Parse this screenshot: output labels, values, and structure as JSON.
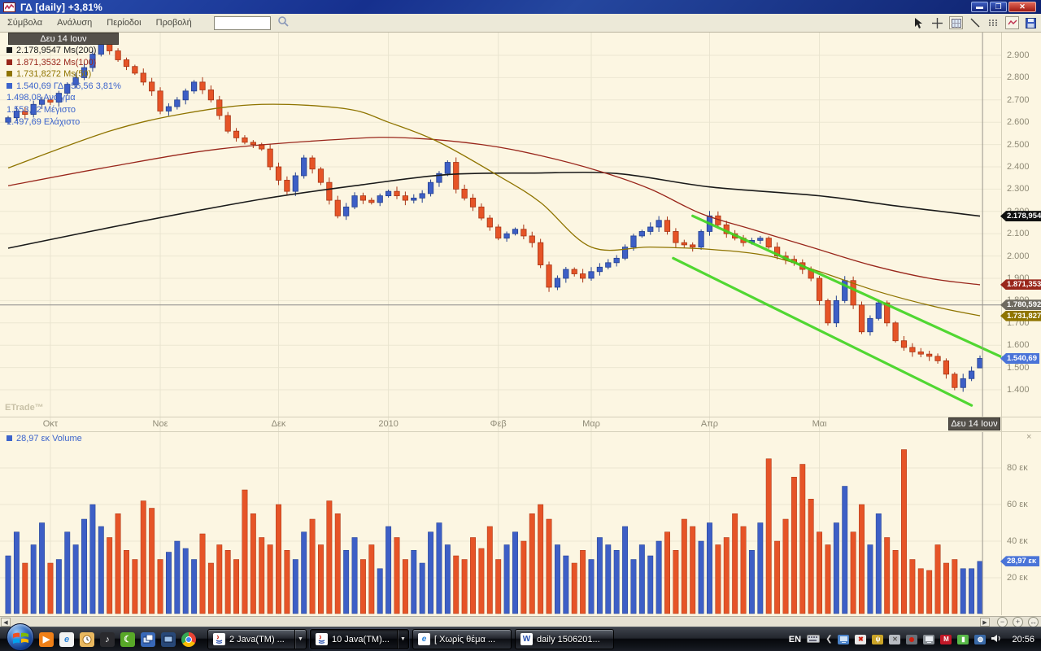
{
  "window": {
    "icon": "line-chart-app-icon",
    "title": "ΓΔ [daily] +3,81%"
  },
  "menu": {
    "items": [
      "Σύμβολα",
      "Ανάλυση",
      "Περίοδοι",
      "Προβολή"
    ],
    "search_value": ""
  },
  "toolbar": {
    "icons": [
      "pointer-tool",
      "crosshair-tool",
      "grid-tool",
      "trendline-tool",
      "dots-grid-tool",
      "chart-style-tool",
      "save-tool"
    ]
  },
  "ui": {
    "close_glyph": "×"
  },
  "chart": {
    "cursor_date": "Δευ 14 Ιουν",
    "watermark": "ETrade™",
    "legend": [
      {
        "swatch": "#1a1a1a",
        "color": "#1a1a1a",
        "text": "2.178,9547 Ms(200)"
      },
      {
        "swatch": "#99261b",
        "color": "#99261b",
        "text": "1.871,3532 Ms(100)"
      },
      {
        "swatch": "#8f7400",
        "color": "#8f7400",
        "text": "1.731,8272 Ms(50)"
      },
      {
        "swatch": "#3c64cc",
        "color": "#3c64cc",
        "text": "1.540,69 ΓΔ +56,56 3,81%"
      },
      {
        "swatch": null,
        "color": "#3c64cc",
        "text": "1.498,08 Ανοιγμα"
      },
      {
        "swatch": null,
        "color": "#3c64cc",
        "text": "1.553,72 Μέγιστο"
      },
      {
        "swatch": null,
        "color": "#3c64cc",
        "text": "1.497,69 Ελάχιστο"
      }
    ],
    "price_tags": [
      {
        "text": "2.178,954",
        "value": 2178.95,
        "bg": "#111111"
      },
      {
        "text": "1.871,353",
        "value": 1871.35,
        "bg": "#99261b"
      },
      {
        "text": "1.780,592",
        "value": 1780.59,
        "bg": "#6e6a60"
      },
      {
        "text": "1.731,827",
        "value": 1731.83,
        "bg": "#8f7400"
      },
      {
        "text": "1.540,69",
        "value": 1540.69,
        "bg": "#4a74d8"
      }
    ]
  },
  "chart_data": {
    "type": "candlestick",
    "symbol": "ΓΔ",
    "timeframe": "daily",
    "change_pct_label": "+3,81%",
    "ylim": [
      1350,
      2950
    ],
    "yticks": [
      {
        "v": 2900,
        "t": "2.900"
      },
      {
        "v": 2800,
        "t": "2.800"
      },
      {
        "v": 2700,
        "t": "2.700"
      },
      {
        "v": 2600,
        "t": "2.600"
      },
      {
        "v": 2500,
        "t": "2.500"
      },
      {
        "v": 2400,
        "t": "2.400"
      },
      {
        "v": 2300,
        "t": "2.300"
      },
      {
        "v": 2200,
        "t": "2.200"
      },
      {
        "v": 2100,
        "t": "2.100"
      },
      {
        "v": 2000,
        "t": "2.000"
      },
      {
        "v": 1900,
        "t": "1.900"
      },
      {
        "v": 1800,
        "t": "1.800"
      },
      {
        "v": 1700,
        "t": "1.700"
      },
      {
        "v": 1600,
        "t": "1.600"
      },
      {
        "v": 1500,
        "t": "1.500"
      },
      {
        "v": 1400,
        "t": "1.400"
      }
    ],
    "x_month_ticks": [
      {
        "t": "Οκτ",
        "i": 5
      },
      {
        "t": "Νοε",
        "i": 18
      },
      {
        "t": "Δεκ",
        "i": 32
      },
      {
        "t": "2010",
        "i": 45
      },
      {
        "t": "Φεβ",
        "i": 58
      },
      {
        "t": "Μαρ",
        "i": 69
      },
      {
        "t": "Απρ",
        "i": 83
      },
      {
        "t": "Μαι",
        "i": 96
      }
    ],
    "closes": [
      2620,
      2650,
      2635,
      2680,
      2700,
      2690,
      2730,
      2770,
      2800,
      2845,
      2905,
      2950,
      2920,
      2880,
      2850,
      2820,
      2780,
      2740,
      2650,
      2670,
      2700,
      2740,
      2780,
      2745,
      2700,
      2630,
      2560,
      2530,
      2510,
      2500,
      2480,
      2400,
      2340,
      2290,
      2360,
      2440,
      2390,
      2330,
      2250,
      2180,
      2220,
      2270,
      2250,
      2240,
      2270,
      2290,
      2270,
      2250,
      2260,
      2280,
      2330,
      2370,
      2420,
      2300,
      2260,
      2220,
      2170,
      2130,
      2080,
      2100,
      2120,
      2090,
      2060,
      1960,
      1860,
      1900,
      1940,
      1920,
      1900,
      1930,
      1950,
      1970,
      1990,
      2040,
      2090,
      2110,
      2130,
      2160,
      2110,
      2060,
      2050,
      2040,
      2110,
      2180,
      2140,
      2100,
      2080,
      2060,
      2070,
      2080,
      2040,
      2000,
      1985,
      1970,
      1940,
      1900,
      1800,
      1700,
      1800,
      1890,
      1780,
      1660,
      1720,
      1790,
      1700,
      1620,
      1590,
      1570,
      1560,
      1550,
      1530,
      1470,
      1410,
      1450,
      1484,
      1540.69
    ],
    "volumes_millions": [
      32,
      45,
      28,
      38,
      50,
      28,
      30,
      45,
      38,
      52,
      60,
      48,
      42,
      55,
      35,
      30,
      62,
      58,
      30,
      34,
      40,
      36,
      30,
      44,
      28,
      38,
      35,
      30,
      68,
      55,
      42,
      38,
      60,
      35,
      30,
      45,
      52,
      38,
      62,
      55,
      35,
      42,
      30,
      38,
      25,
      48,
      42,
      30,
      35,
      28,
      45,
      50,
      38,
      32,
      30,
      42,
      36,
      48,
      30,
      38,
      45,
      40,
      55,
      60,
      52,
      38,
      32,
      28,
      35,
      30,
      42,
      38,
      35,
      48,
      30,
      38,
      32,
      40,
      45,
      35,
      52,
      48,
      40,
      50,
      38,
      42,
      55,
      48,
      35,
      50,
      85,
      40,
      52,
      75,
      82,
      63,
      45,
      38,
      50,
      70,
      45,
      60,
      38,
      55,
      42,
      35,
      90,
      30,
      25,
      24,
      38,
      28,
      30,
      25,
      25,
      28.97
    ],
    "last_candle": {
      "date": "Δευ 14 Ιουν",
      "open": 1498.08,
      "high": 1553.72,
      "low": 1497.69,
      "close": 1540.69,
      "change": "+56,56",
      "change_pct": "3,81%"
    },
    "moving_averages": [
      {
        "name": "Ms(200)",
        "current": 2178.9547,
        "color": "#1a1a1a",
        "anchors": [
          [
            0,
            2035
          ],
          [
            15,
            2150
          ],
          [
            30,
            2255
          ],
          [
            42,
            2320
          ],
          [
            52,
            2365
          ],
          [
            62,
            2372
          ],
          [
            72,
            2370
          ],
          [
            83,
            2310
          ],
          [
            96,
            2270
          ],
          [
            105,
            2225
          ],
          [
            115,
            2179
          ]
        ]
      },
      {
        "name": "Ms(100)",
        "current": 1871.3532,
        "color": "#99261b",
        "anchors": [
          [
            0,
            2315
          ],
          [
            12,
            2400
          ],
          [
            25,
            2480
          ],
          [
            40,
            2525
          ],
          [
            47,
            2530
          ],
          [
            56,
            2500
          ],
          [
            63,
            2450
          ],
          [
            70,
            2380
          ],
          [
            76,
            2300
          ],
          [
            82,
            2190
          ],
          [
            88,
            2120
          ],
          [
            95,
            2040
          ],
          [
            102,
            1960
          ],
          [
            109,
            1900
          ],
          [
            115,
            1871
          ]
        ]
      },
      {
        "name": "Ms(50)",
        "current": 1731.8272,
        "color": "#8f7400",
        "anchors": [
          [
            0,
            2395
          ],
          [
            12,
            2560
          ],
          [
            21,
            2640
          ],
          [
            30,
            2680
          ],
          [
            40,
            2660
          ],
          [
            45,
            2600
          ],
          [
            51,
            2510
          ],
          [
            58,
            2360
          ],
          [
            63,
            2240
          ],
          [
            69,
            2040
          ],
          [
            76,
            2040
          ],
          [
            83,
            2030
          ],
          [
            90,
            2000
          ],
          [
            96,
            1930
          ],
          [
            103,
            1840
          ],
          [
            110,
            1770
          ],
          [
            115,
            1732
          ]
        ]
      }
    ],
    "trend_channel": {
      "color": "#3fd41f",
      "upper": [
        [
          81,
          2180
        ],
        [
          117.5,
          1548
        ]
      ],
      "lower": [
        [
          78.7,
          1990
        ],
        [
          114,
          1330
        ]
      ]
    },
    "support_line": {
      "value": 1780.592,
      "color": "#8a8a8a"
    },
    "crosshair_x_index": 115.3,
    "up_color": "#3d5fc6",
    "down_color": "#e65427"
  },
  "volume_panel": {
    "legend_value": "28,97 εκ",
    "legend_label": "Volume",
    "tag": {
      "text": "28,97 εκ",
      "value": 28.97,
      "bg": "#4a74d8"
    },
    "yticks": [
      {
        "v": 80,
        "t": "80 εκ"
      },
      {
        "v": 60,
        "t": "60 εκ"
      },
      {
        "v": 40,
        "t": "40 εκ"
      },
      {
        "v": 20,
        "t": "20 εκ"
      }
    ]
  },
  "scrollbar": {
    "left": "◀",
    "right": "▶",
    "zoom_out": "−",
    "zoom_in": "+",
    "fit": "↔"
  },
  "taskbar": {
    "quick_launch": [
      "media-player",
      "internet-explorer",
      "clock",
      "music-player",
      "wave-app",
      "window-switcher",
      "show-desktop",
      "chrome"
    ],
    "buttons": [
      {
        "icon": "java",
        "label": "2 Java(TM) ...",
        "grouped": true,
        "active": false
      },
      {
        "icon": "java",
        "label": "10 Java(TM)...",
        "grouped": true,
        "active": true
      },
      {
        "icon": "internet-explorer",
        "label": "[ Χωρίς θέμα ...",
        "grouped": false,
        "active": false
      },
      {
        "icon": "word",
        "label": "daily 1506201...",
        "grouped": false,
        "active": false
      }
    ],
    "tray": {
      "language": "EN",
      "clock": "20:56"
    }
  }
}
